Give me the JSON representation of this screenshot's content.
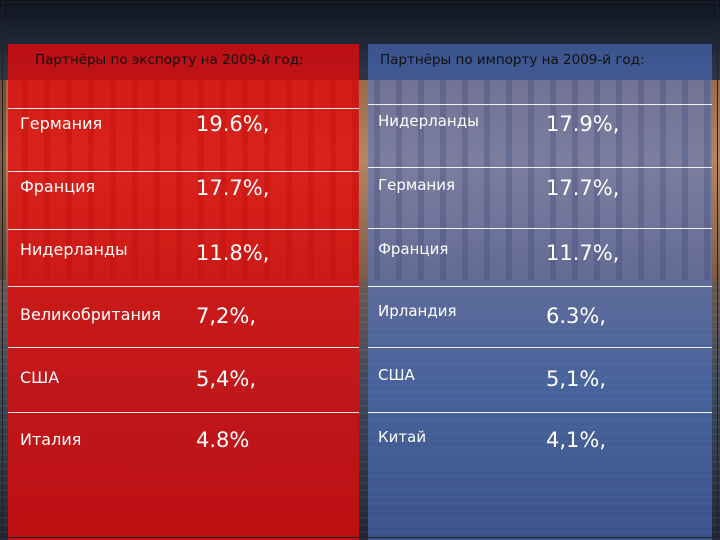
{
  "export": {
    "title": "Партнёры по экспорту   на 2009-й год:",
    "rows": [
      {
        "country": "Германия",
        "value": "19.6%,"
      },
      {
        "country": "Франция",
        "value": "17.7%,"
      },
      {
        "country": "Нидерланды",
        "value": "11.8%,"
      },
      {
        "country": "Великобритания",
        "value": "7,2%,"
      },
      {
        "country": "США",
        "value": "5,4%,"
      },
      {
        "country": "Италия",
        "value": "4.8%"
      }
    ]
  },
  "import": {
    "title": "Партнёры по импорту  на 2009-й год:",
    "rows": [
      {
        "country": "Нидерланды",
        "value": "17.9%,"
      },
      {
        "country": "Германия",
        "value": "17.7%,"
      },
      {
        "country": "Франция",
        "value": "11.7%,"
      },
      {
        "country": "Ирландия",
        "value": "6.3%,"
      },
      {
        "country": "США",
        "value": "5,1%,"
      },
      {
        "country": "Китай",
        "value": "4,1%,"
      }
    ]
  },
  "colors": {
    "export_panel": "#e20a0a",
    "import_panel": "#5078d2"
  }
}
